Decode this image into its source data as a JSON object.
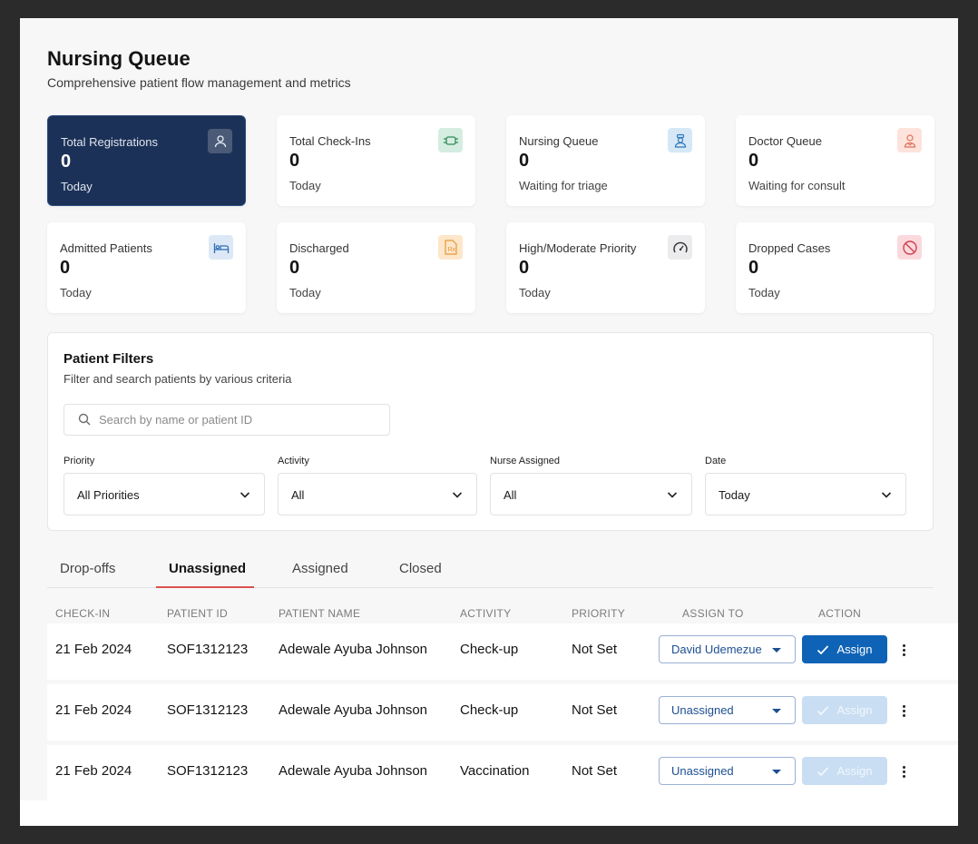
{
  "header": {
    "title": "Nursing Queue",
    "subtitle": "Comprehensive patient flow management and metrics"
  },
  "metrics": [
    {
      "label": "Total Registrations",
      "value": "0",
      "sub": "Today",
      "icon": "user-icon",
      "active": true
    },
    {
      "label": "Total Check-Ins",
      "value": "0",
      "sub": "Today",
      "icon": "check-in-icon"
    },
    {
      "label": "Nursing Queue",
      "value": "0",
      "sub": "Waiting for triage",
      "icon": "nurse-icon"
    },
    {
      "label": "Doctor Queue",
      "value": "0",
      "sub": "Waiting for consult",
      "icon": "doctor-icon"
    },
    {
      "label": "Admitted Patients",
      "value": "0",
      "sub": "Today",
      "icon": "bed-icon"
    },
    {
      "label": "Discharged",
      "value": "0",
      "sub": "Today",
      "icon": "prescription-icon"
    },
    {
      "label": "High/Moderate Priority",
      "value": "0",
      "sub": "Today",
      "icon": "gauge-icon"
    },
    {
      "label": "Dropped Cases",
      "value": "0",
      "sub": "Today",
      "icon": "ban-icon"
    }
  ],
  "colors": {
    "primary": "#0f63b6",
    "active_card": "#1c3157",
    "tab_accent": "#d9534f"
  },
  "filters": {
    "title": "Patient Filters",
    "subtitle": "Filter and search patients by various criteria",
    "search_placeholder": "Search by name or patient ID",
    "fields": [
      {
        "label": "Priority",
        "value": "All Priorities"
      },
      {
        "label": "Activity",
        "value": "All"
      },
      {
        "label": "Nurse Assigned",
        "value": "All"
      },
      {
        "label": "Date",
        "value": "Today"
      }
    ]
  },
  "tabs": [
    {
      "label": "Drop-offs"
    },
    {
      "label": "Unassigned",
      "active": true
    },
    {
      "label": "Assigned"
    },
    {
      "label": "Closed"
    }
  ],
  "table": {
    "headers": [
      "CHECK-IN",
      "PATIENT ID",
      "PATIENT NAME",
      "ACTIVITY",
      "PRIORITY",
      "ASSIGN TO",
      "ACTION"
    ],
    "rows": [
      {
        "checkin": "21 Feb 2024",
        "patient_id": "SOF1312123",
        "name": "Adewale Ayuba Johnson",
        "activity": "Check-up",
        "priority": "Not Set",
        "assign_to": "David Udemezue",
        "action": "Assign",
        "enabled": true
      },
      {
        "checkin": "21 Feb 2024",
        "patient_id": "SOF1312123",
        "name": "Adewale Ayuba Johnson",
        "activity": "Check-up",
        "priority": "Not Set",
        "assign_to": "Unassigned",
        "action": "Assign",
        "enabled": false
      },
      {
        "checkin": "21 Feb 2024",
        "patient_id": "SOF1312123",
        "name": "Adewale Ayuba Johnson",
        "activity": "Vaccination",
        "priority": "Not Set",
        "assign_to": "Unassigned",
        "action": "Assign",
        "enabled": false
      }
    ]
  }
}
